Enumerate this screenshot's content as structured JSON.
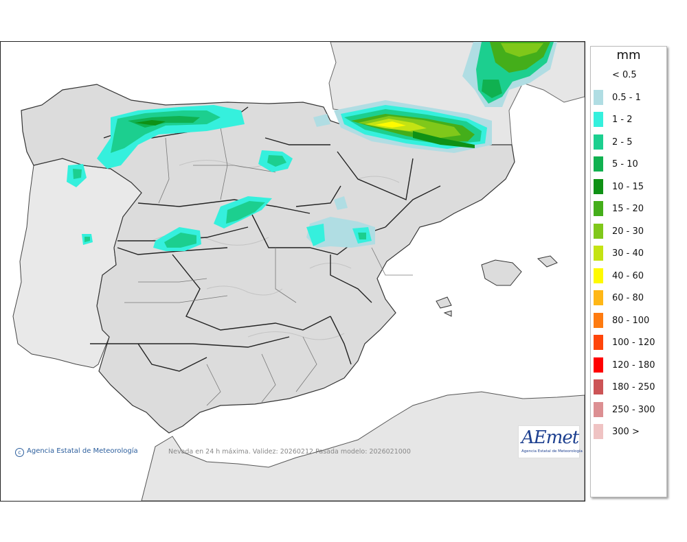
{
  "map": {
    "credit": "Agencia Estatal de Meteorología",
    "caption": "Nevada en 24 h máxima. Validez: 20260212 Pasada modelo: 2026021000",
    "logo_text": "AEmet",
    "logo_subtitle": "Agencia Estatal de Meteorología"
  },
  "legend": {
    "unit": "mm",
    "items": [
      {
        "label": "< 0.5",
        "color": "#ffffff"
      },
      {
        "label": "0.5 - 1",
        "color": "#b0dde3"
      },
      {
        "label": "1 - 2",
        "color": "#35f0dd"
      },
      {
        "label": "2 - 5",
        "color": "#1ccf8f"
      },
      {
        "label": "5 - 10",
        "color": "#10b150"
      },
      {
        "label": "10 - 15",
        "color": "#0f9115"
      },
      {
        "label": "15 - 20",
        "color": "#44ae1a"
      },
      {
        "label": "20 - 30",
        "color": "#80c81a"
      },
      {
        "label": "30 - 40",
        "color": "#c4e313"
      },
      {
        "label": "40 - 60",
        "color": "#fffa00"
      },
      {
        "label": "60 - 80",
        "color": "#ffb716"
      },
      {
        "label": "80 - 100",
        "color": "#fe7b10"
      },
      {
        "label": "100 - 120",
        "color": "#ff450a"
      },
      {
        "label": "120 - 180",
        "color": "#ff0000"
      },
      {
        "label": "180 - 250",
        "color": "#cc5456"
      },
      {
        "label": "250 - 300",
        "color": "#dc8f92"
      },
      {
        "label": "300 >",
        "color": "#efc3c3"
      }
    ]
  }
}
